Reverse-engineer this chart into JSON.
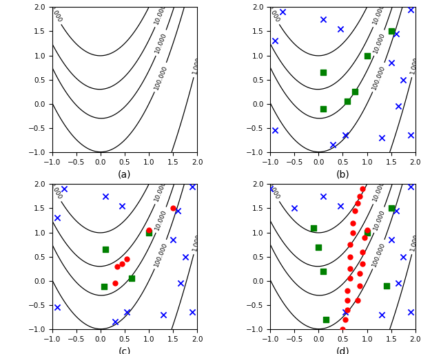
{
  "xlim": [
    -1.0,
    2.0
  ],
  "ylim": [
    -1.0,
    2.0
  ],
  "contour_levels": [
    10.0,
    100.0,
    1000.0,
    10000.0,
    100000.0
  ],
  "contour_label_fmt": {
    "10.0": "10.000",
    "100.0": "100.000",
    "1000.0": "1.000",
    "10000.0": "10.000",
    "100000.0": "100.000"
  },
  "subplot_labels": [
    "(a)",
    "(b)",
    "(c)",
    "(d)"
  ],
  "blue_x_b": [
    [
      -0.9,
      1.3
    ],
    [
      -0.75,
      1.9
    ],
    [
      0.1,
      1.75
    ],
    [
      0.45,
      1.55
    ],
    [
      1.6,
      1.45
    ],
    [
      1.9,
      1.95
    ],
    [
      1.5,
      0.85
    ],
    [
      1.75,
      0.5
    ],
    [
      1.65,
      -0.05
    ],
    [
      0.55,
      -0.65
    ],
    [
      1.9,
      -0.65
    ],
    [
      1.3,
      -0.7
    ],
    [
      -0.9,
      -0.55
    ],
    [
      0.3,
      -0.85
    ]
  ],
  "green_sq_b": [
    [
      0.1,
      0.65
    ],
    [
      0.1,
      -0.1
    ],
    [
      0.6,
      0.05
    ],
    [
      0.75,
      0.25
    ],
    [
      1.0,
      1.0
    ],
    [
      1.5,
      1.5
    ]
  ],
  "blue_x_c": [
    [
      -0.9,
      1.3
    ],
    [
      -0.75,
      1.9
    ],
    [
      0.1,
      1.75
    ],
    [
      0.45,
      1.55
    ],
    [
      1.6,
      1.45
    ],
    [
      1.9,
      1.95
    ],
    [
      1.5,
      0.85
    ],
    [
      1.75,
      0.5
    ],
    [
      1.65,
      -0.05
    ],
    [
      0.55,
      -0.65
    ],
    [
      1.9,
      -0.65
    ],
    [
      1.3,
      -0.7
    ],
    [
      -0.9,
      -0.55
    ],
    [
      0.3,
      -0.85
    ]
  ],
  "green_sq_c": [
    [
      0.1,
      0.65
    ],
    [
      0.08,
      -0.12
    ],
    [
      0.65,
      0.05
    ],
    [
      1.0,
      1.0
    ]
  ],
  "red_dot_c": [
    [
      0.3,
      -0.05
    ],
    [
      0.35,
      0.3
    ],
    [
      0.45,
      0.35
    ],
    [
      0.55,
      0.45
    ],
    [
      1.0,
      1.05
    ],
    [
      1.5,
      1.5
    ]
  ],
  "blue_x_d": [
    [
      -1.0,
      1.9
    ],
    [
      -0.5,
      1.5
    ],
    [
      0.1,
      1.75
    ],
    [
      0.45,
      1.55
    ],
    [
      1.6,
      1.45
    ],
    [
      1.9,
      1.95
    ],
    [
      1.5,
      0.85
    ],
    [
      1.75,
      0.5
    ],
    [
      1.65,
      -0.05
    ],
    [
      0.55,
      -0.65
    ],
    [
      1.9,
      -0.65
    ],
    [
      1.3,
      -0.7
    ]
  ],
  "green_sq_d": [
    [
      -0.1,
      1.1
    ],
    [
      0.0,
      0.7
    ],
    [
      0.1,
      0.2
    ],
    [
      0.15,
      -0.8
    ],
    [
      1.0,
      1.0
    ],
    [
      1.5,
      1.5
    ],
    [
      1.4,
      -0.1
    ]
  ],
  "red_dot_d": [
    [
      0.5,
      -1.0
    ],
    [
      0.55,
      -0.8
    ],
    [
      0.6,
      -0.6
    ],
    [
      0.6,
      -0.4
    ],
    [
      0.6,
      -0.2
    ],
    [
      0.65,
      0.05
    ],
    [
      0.65,
      0.25
    ],
    [
      0.65,
      0.5
    ],
    [
      0.65,
      0.75
    ],
    [
      0.7,
      1.0
    ],
    [
      0.7,
      1.2
    ],
    [
      0.75,
      1.45
    ],
    [
      0.8,
      1.6
    ],
    [
      0.85,
      1.75
    ],
    [
      0.9,
      1.9
    ],
    [
      1.0,
      1.05
    ],
    [
      0.95,
      0.9
    ],
    [
      0.9,
      0.6
    ],
    [
      0.9,
      0.35
    ],
    [
      0.85,
      0.15
    ],
    [
      0.85,
      -0.1
    ],
    [
      0.8,
      -0.4
    ]
  ],
  "figsize": [
    6.4,
    5.14
  ],
  "dpi": 100
}
